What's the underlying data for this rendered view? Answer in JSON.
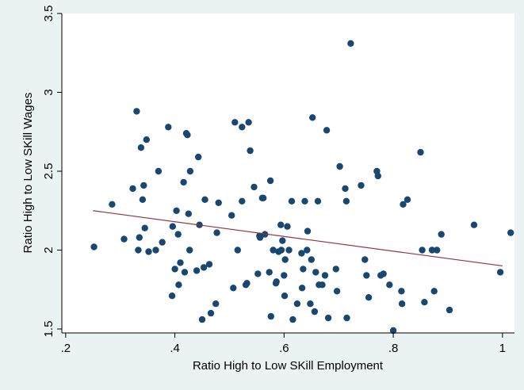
{
  "chart_data": {
    "type": "scatter",
    "title": "",
    "xlabel": "Ratio High to Low SKill Employment",
    "ylabel": "Ratio High to Low SKill Wages",
    "xlim": [
      0.193,
      1.022
    ],
    "ylim": [
      1.475,
      3.5
    ],
    "xticks": [
      0.2,
      0.4,
      0.6,
      0.8,
      1.0
    ],
    "xtick_labels": [
      ".2",
      ".4",
      ".6",
      ".8",
      "1"
    ],
    "yticks": [
      1.5,
      2.0,
      2.5,
      3.0,
      3.5
    ],
    "ytick_labels": [
      "1.5",
      "2",
      "2.5",
      "3",
      "3.5"
    ],
    "grid": false,
    "legend": "none",
    "colors": {
      "points": "#1a476f",
      "fit_line": "#90353b",
      "plot_bg": "#ffffff",
      "outer_bg": "#eaf2f3"
    },
    "fit_line": {
      "x": [
        0.25,
        1.0
      ],
      "y": [
        2.25,
        1.9
      ]
    },
    "points": [
      [
        0.252,
        2.02
      ],
      [
        0.285,
        2.29
      ],
      [
        0.307,
        2.07
      ],
      [
        0.323,
        2.39
      ],
      [
        0.33,
        2.88
      ],
      [
        0.333,
        2.0
      ],
      [
        0.335,
        2.08
      ],
      [
        0.338,
        2.65
      ],
      [
        0.341,
        2.32
      ],
      [
        0.343,
        2.41
      ],
      [
        0.345,
        2.14
      ],
      [
        0.348,
        2.7
      ],
      [
        0.352,
        1.99
      ],
      [
        0.365,
        2.0
      ],
      [
        0.37,
        2.5
      ],
      [
        0.377,
        2.05
      ],
      [
        0.388,
        2.78
      ],
      [
        0.395,
        1.71
      ],
      [
        0.396,
        2.15
      ],
      [
        0.4,
        1.88
      ],
      [
        0.403,
        2.25
      ],
      [
        0.406,
        2.1
      ],
      [
        0.407,
        1.78
      ],
      [
        0.41,
        1.92
      ],
      [
        0.416,
        2.43
      ],
      [
        0.418,
        1.86
      ],
      [
        0.421,
        2.74
      ],
      [
        0.423,
        2.73
      ],
      [
        0.425,
        2.23
      ],
      [
        0.427,
        2.0
      ],
      [
        0.428,
        2.5
      ],
      [
        0.44,
        1.87
      ],
      [
        0.443,
        2.59
      ],
      [
        0.445,
        2.16
      ],
      [
        0.45,
        1.56
      ],
      [
        0.453,
        1.89
      ],
      [
        0.455,
        2.32
      ],
      [
        0.463,
        1.91
      ],
      [
        0.466,
        1.6
      ],
      [
        0.475,
        1.66
      ],
      [
        0.477,
        2.11
      ],
      [
        0.48,
        2.3
      ],
      [
        0.504,
        2.22
      ],
      [
        0.507,
        1.76
      ],
      [
        0.51,
        2.81
      ],
      [
        0.515,
        2.0
      ],
      [
        0.523,
        2.78
      ],
      [
        0.523,
        2.31
      ],
      [
        0.53,
        1.78
      ],
      [
        0.532,
        1.79
      ],
      [
        0.535,
        2.81
      ],
      [
        0.538,
        2.63
      ],
      [
        0.545,
        2.4
      ],
      [
        0.552,
        1.85
      ],
      [
        0.555,
        2.09
      ],
      [
        0.556,
        2.08
      ],
      [
        0.56,
        2.33
      ],
      [
        0.562,
        2.33
      ],
      [
        0.565,
        2.1
      ],
      [
        0.573,
        1.86
      ],
      [
        0.575,
        2.44
      ],
      [
        0.576,
        1.58
      ],
      [
        0.58,
        2.0
      ],
      [
        0.585,
        1.79
      ],
      [
        0.586,
        1.8
      ],
      [
        0.59,
        1.99
      ],
      [
        0.594,
        2.16
      ],
      [
        0.595,
        2.0
      ],
      [
        0.597,
        2.06
      ],
      [
        0.6,
        1.84
      ],
      [
        0.601,
        1.71
      ],
      [
        0.602,
        1.94
      ],
      [
        0.606,
        2.15
      ],
      [
        0.609,
        2.0
      ],
      [
        0.614,
        2.31
      ],
      [
        0.616,
        1.56
      ],
      [
        0.624,
        1.66
      ],
      [
        0.632,
        1.98
      ],
      [
        0.633,
        1.76
      ],
      [
        0.635,
        1.88
      ],
      [
        0.638,
        2.31
      ],
      [
        0.642,
        2.0
      ],
      [
        0.643,
        2.12
      ],
      [
        0.648,
        1.66
      ],
      [
        0.65,
        1.94
      ],
      [
        0.652,
        2.84
      ],
      [
        0.656,
        1.61
      ],
      [
        0.658,
        1.86
      ],
      [
        0.662,
        2.31
      ],
      [
        0.664,
        1.78
      ],
      [
        0.67,
        1.78
      ],
      [
        0.675,
        1.84
      ],
      [
        0.678,
        2.76
      ],
      [
        0.681,
        1.57
      ],
      [
        0.695,
        1.88
      ],
      [
        0.697,
        1.74
      ],
      [
        0.702,
        2.53
      ],
      [
        0.712,
        2.39
      ],
      [
        0.714,
        2.31
      ],
      [
        0.715,
        1.57
      ],
      [
        0.722,
        3.31
      ],
      [
        0.741,
        2.41
      ],
      [
        0.748,
        1.94
      ],
      [
        0.751,
        1.84
      ],
      [
        0.755,
        1.7
      ],
      [
        0.77,
        2.5
      ],
      [
        0.772,
        2.47
      ],
      [
        0.777,
        1.84
      ],
      [
        0.782,
        1.85
      ],
      [
        0.793,
        1.78
      ],
      [
        0.8,
        1.49
      ],
      [
        0.815,
        1.74
      ],
      [
        0.816,
        1.66
      ],
      [
        0.818,
        2.29
      ],
      [
        0.826,
        2.32
      ],
      [
        0.85,
        2.62
      ],
      [
        0.853,
        2.0
      ],
      [
        0.857,
        1.67
      ],
      [
        0.871,
        2.0
      ],
      [
        0.875,
        1.74
      ],
      [
        0.88,
        2.0
      ],
      [
        0.888,
        2.1
      ],
      [
        0.903,
        1.62
      ],
      [
        0.948,
        2.16
      ],
      [
        0.996,
        1.86
      ],
      [
        1.015,
        2.11
      ]
    ]
  }
}
